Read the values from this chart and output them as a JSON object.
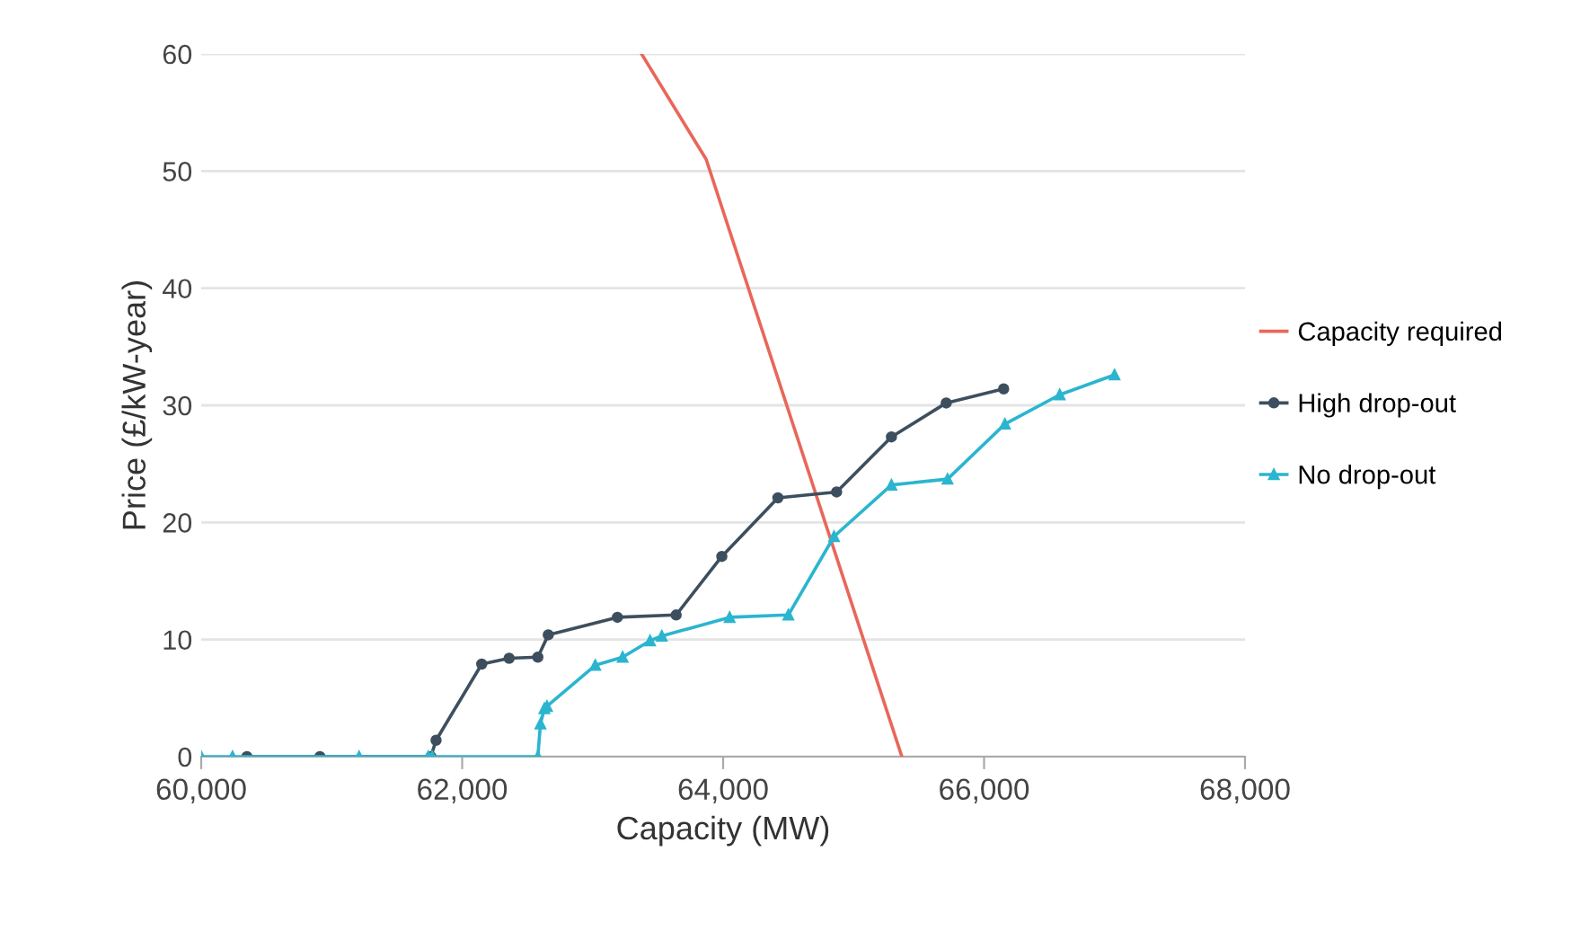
{
  "chart_data": {
    "type": "line",
    "xlabel": "Capacity (MW)",
    "ylabel": "Price (£/kW-year)",
    "xlim": [
      60000,
      68000
    ],
    "xticks": [
      {
        "value": 60000,
        "label": "60,000"
      },
      {
        "value": 62000,
        "label": "62,000"
      },
      {
        "value": 64000,
        "label": "64,000"
      },
      {
        "value": 66000,
        "label": "66,000"
      },
      {
        "value": 68000,
        "label": "68,000"
      }
    ],
    "ylim": [
      0,
      60
    ],
    "yticks": [
      0,
      10,
      20,
      30,
      40,
      50,
      60
    ],
    "grid": "y",
    "legend": "right",
    "series": [
      {
        "name": "Capacity required",
        "color": "#e8675a",
        "marker": "none",
        "x": [
          63375,
          63870,
          65370
        ],
        "values": [
          60,
          51,
          0
        ]
      },
      {
        "name": "High drop-out",
        "color": "#3d4f5e",
        "marker": "circle",
        "x": [
          60350,
          60910,
          61760,
          61800,
          62150,
          62360,
          62580,
          62660,
          63190,
          63640,
          63990,
          64420,
          64870,
          65290,
          65710,
          66150
        ],
        "values": [
          0,
          0,
          0,
          1.4,
          7.9,
          8.4,
          8.5,
          10.4,
          11.9,
          12.1,
          17.1,
          22.1,
          22.6,
          27.3,
          30.2,
          31.4
        ]
      },
      {
        "name": "No drop-out",
        "color": "#2bb5cf",
        "marker": "triangle",
        "x": [
          60000,
          60240,
          61210,
          61740,
          61770,
          62580,
          62600,
          62630,
          62650,
          63020,
          63230,
          63440,
          63530,
          64050,
          64500,
          64850,
          65290,
          65720,
          66160,
          66580,
          67000
        ],
        "values": [
          0,
          0,
          0,
          0,
          0,
          0,
          2.8,
          4.1,
          4.3,
          7.8,
          8.5,
          9.9,
          10.3,
          11.9,
          12.1,
          18.8,
          23.2,
          23.7,
          28.4,
          30.9,
          32.6
        ]
      }
    ]
  }
}
